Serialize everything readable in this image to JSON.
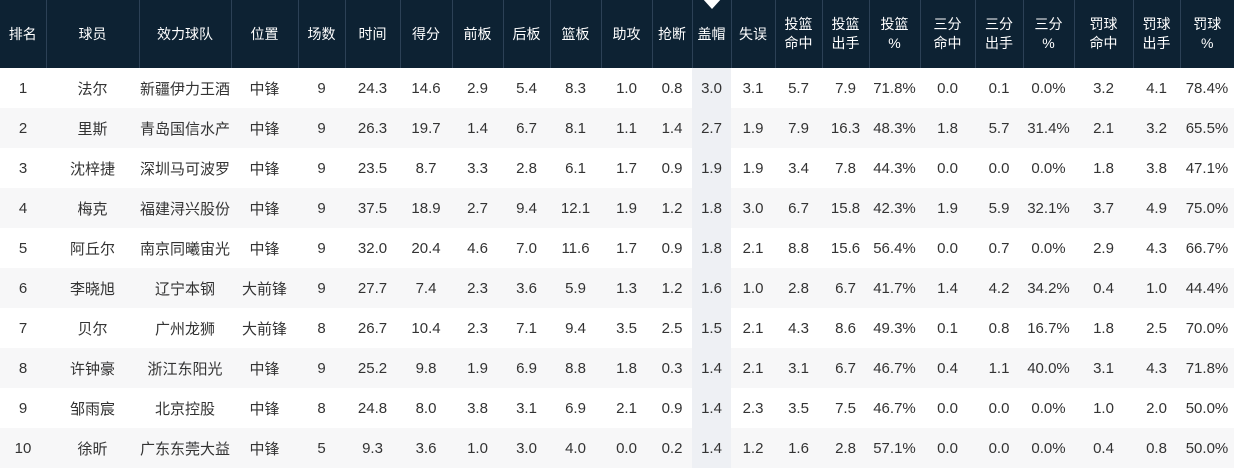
{
  "colors": {
    "header_bg": "#0d2233",
    "header_divider": "#2c4156",
    "header_text": "#ffffff",
    "row_alt": "#f7f7f8",
    "col_highlight": "#eef0f4",
    "body_text": "#333333"
  },
  "table": {
    "sorted_column_index": 12,
    "sort_direction": "desc",
    "columns": [
      {
        "key": "rank",
        "label": "排名"
      },
      {
        "key": "player",
        "label": "球员"
      },
      {
        "key": "team",
        "label": "效力球队"
      },
      {
        "key": "position",
        "label": "位置"
      },
      {
        "key": "games",
        "label": "场数"
      },
      {
        "key": "minutes",
        "label": "时间"
      },
      {
        "key": "points",
        "label": "得分"
      },
      {
        "key": "off-rebounds",
        "label": "前板"
      },
      {
        "key": "def-rebounds",
        "label": "后板"
      },
      {
        "key": "rebounds",
        "label": "篮板"
      },
      {
        "key": "assists",
        "label": "助攻"
      },
      {
        "key": "steals",
        "label": "抢断"
      },
      {
        "key": "blocks",
        "label": "盖帽"
      },
      {
        "key": "turnovers",
        "label": "失误"
      },
      {
        "key": "fg-made",
        "label": "投篮\n命中"
      },
      {
        "key": "fg-attempts",
        "label": "投篮\n出手"
      },
      {
        "key": "fg-pct",
        "label": "投篮\n%"
      },
      {
        "key": "three-made",
        "label": "三分\n命中"
      },
      {
        "key": "three-attempts",
        "label": "三分\n出手"
      },
      {
        "key": "three-pct",
        "label": "三分\n%"
      },
      {
        "key": "ft-made",
        "label": "罚球\n命中"
      },
      {
        "key": "ft-attempts",
        "label": "罚球\n出手"
      },
      {
        "key": "ft-pct",
        "label": "罚球\n%"
      }
    ],
    "rows": [
      [
        "1",
        "法尔",
        "新疆伊力王酒",
        "中锋",
        "9",
        "24.3",
        "14.6",
        "2.9",
        "5.4",
        "8.3",
        "1.0",
        "0.8",
        "3.0",
        "3.1",
        "5.7",
        "7.9",
        "71.8%",
        "0.0",
        "0.1",
        "0.0%",
        "3.2",
        "4.1",
        "78.4%"
      ],
      [
        "2",
        "里斯",
        "青岛国信水产",
        "中锋",
        "9",
        "26.3",
        "19.7",
        "1.4",
        "6.7",
        "8.1",
        "1.1",
        "1.4",
        "2.7",
        "1.9",
        "7.9",
        "16.3",
        "48.3%",
        "1.8",
        "5.7",
        "31.4%",
        "2.1",
        "3.2",
        "65.5%"
      ],
      [
        "3",
        "沈梓捷",
        "深圳马可波罗",
        "中锋",
        "9",
        "23.5",
        "8.7",
        "3.3",
        "2.8",
        "6.1",
        "1.7",
        "0.9",
        "1.9",
        "1.9",
        "3.4",
        "7.8",
        "44.3%",
        "0.0",
        "0.0",
        "0.0%",
        "1.8",
        "3.8",
        "47.1%"
      ],
      [
        "4",
        "梅克",
        "福建浔兴股份",
        "中锋",
        "9",
        "37.5",
        "18.9",
        "2.7",
        "9.4",
        "12.1",
        "1.9",
        "1.2",
        "1.8",
        "3.0",
        "6.7",
        "15.8",
        "42.3%",
        "1.9",
        "5.9",
        "32.1%",
        "3.7",
        "4.9",
        "75.0%"
      ],
      [
        "5",
        "阿丘尔",
        "南京同曦宙光",
        "中锋",
        "9",
        "32.0",
        "20.4",
        "4.6",
        "7.0",
        "11.6",
        "1.7",
        "0.9",
        "1.8",
        "2.1",
        "8.8",
        "15.6",
        "56.4%",
        "0.0",
        "0.7",
        "0.0%",
        "2.9",
        "4.3",
        "66.7%"
      ],
      [
        "6",
        "李晓旭",
        "辽宁本钢",
        "大前锋",
        "9",
        "27.7",
        "7.4",
        "2.3",
        "3.6",
        "5.9",
        "1.3",
        "1.2",
        "1.6",
        "1.0",
        "2.8",
        "6.7",
        "41.7%",
        "1.4",
        "4.2",
        "34.2%",
        "0.4",
        "1.0",
        "44.4%"
      ],
      [
        "7",
        "贝尔",
        "广州龙狮",
        "大前锋",
        "8",
        "26.7",
        "10.4",
        "2.3",
        "7.1",
        "9.4",
        "3.5",
        "2.5",
        "1.5",
        "2.1",
        "4.3",
        "8.6",
        "49.3%",
        "0.1",
        "0.8",
        "16.7%",
        "1.8",
        "2.5",
        "70.0%"
      ],
      [
        "8",
        "许钟豪",
        "浙江东阳光",
        "中锋",
        "9",
        "25.2",
        "9.8",
        "1.9",
        "6.9",
        "8.8",
        "1.8",
        "0.3",
        "1.4",
        "2.1",
        "3.1",
        "6.7",
        "46.7%",
        "0.4",
        "1.1",
        "40.0%",
        "3.1",
        "4.3",
        "71.8%"
      ],
      [
        "9",
        "邹雨宸",
        "北京控股",
        "中锋",
        "8",
        "24.8",
        "8.0",
        "3.8",
        "3.1",
        "6.9",
        "2.1",
        "0.9",
        "1.4",
        "2.3",
        "3.5",
        "7.5",
        "46.7%",
        "0.0",
        "0.0",
        "0.0%",
        "1.0",
        "2.0",
        "50.0%"
      ],
      [
        "10",
        "徐昕",
        "广东东莞大益",
        "中锋",
        "5",
        "9.3",
        "3.6",
        "1.0",
        "3.0",
        "4.0",
        "0.0",
        "0.2",
        "1.4",
        "1.2",
        "1.6",
        "2.8",
        "57.1%",
        "0.0",
        "0.0",
        "0.0%",
        "0.4",
        "0.8",
        "50.0%"
      ]
    ]
  }
}
